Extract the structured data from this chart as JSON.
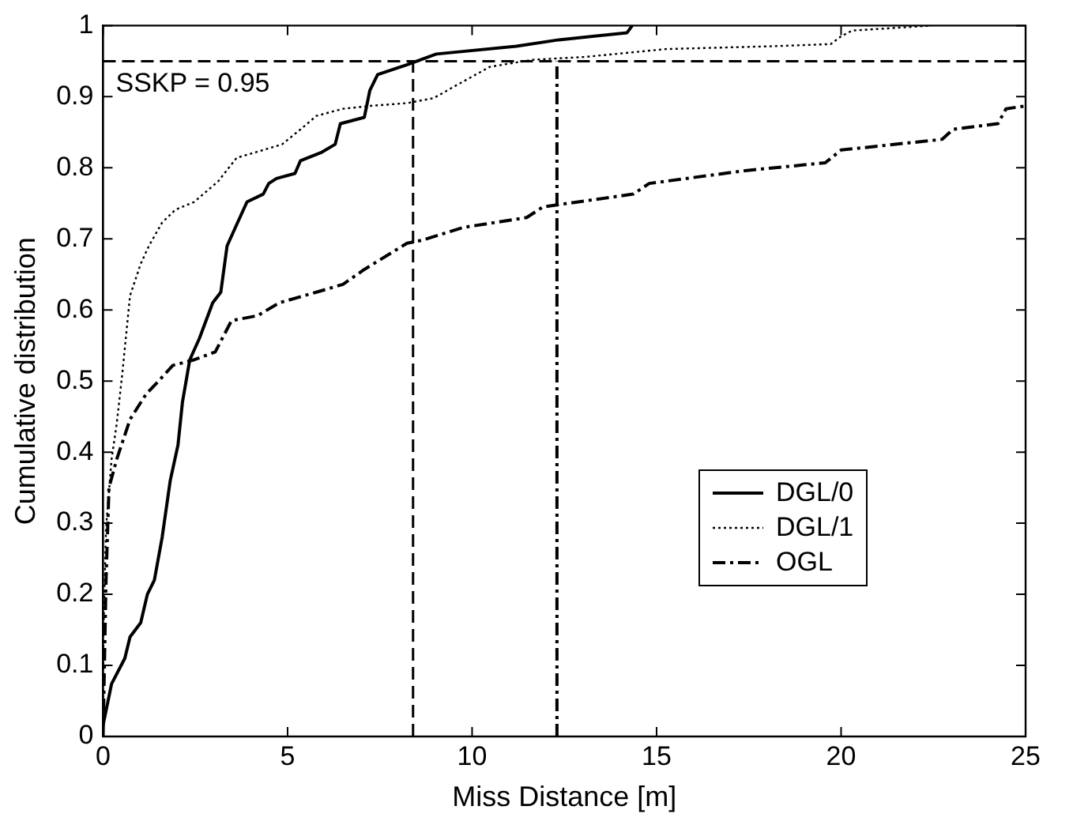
{
  "chart_data": {
    "type": "line",
    "xlabel": "Miss Distance [m]",
    "ylabel": "Cumulative distribution",
    "xlim": [
      0,
      25
    ],
    "xticks": [
      0,
      5,
      10,
      15,
      20,
      25
    ],
    "ylim": [
      0,
      1
    ],
    "yticks": [
      0,
      0.1,
      0.2,
      0.3,
      0.4,
      0.5,
      0.6,
      0.7,
      0.8,
      0.9,
      1
    ],
    "grid": false,
    "legend": "bottom right",
    "marker": "none",
    "series": [
      {
        "name": "DGL/0",
        "color": "#000000",
        "line_style": "solid",
        "x": [
          0,
          0.23,
          0.59,
          0.73,
          1.02,
          1.2,
          1.39,
          1.6,
          1.82,
          2.03,
          2.15,
          2.35,
          2.61,
          2.97,
          3.19,
          3.36,
          3.62,
          3.9,
          4.34,
          4.49,
          4.7,
          5.2,
          5.35,
          5.93,
          6.29,
          6.43,
          7.08,
          7.23,
          7.44,
          8.24,
          9.03,
          11.2,
          12.35,
          14.2,
          14.34
        ],
        "values": [
          0.016,
          0.074,
          0.11,
          0.14,
          0.16,
          0.2,
          0.22,
          0.28,
          0.36,
          0.41,
          0.47,
          0.53,
          0.56,
          0.61,
          0.625,
          0.69,
          0.72,
          0.752,
          0.763,
          0.778,
          0.785,
          0.792,
          0.81,
          0.822,
          0.833,
          0.862,
          0.871,
          0.909,
          0.931,
          0.945,
          0.96,
          0.971,
          0.98,
          0.99,
          1.0
        ]
      },
      {
        "name": "DGL/1",
        "color": "#000000",
        "line_style": "dotted",
        "x": [
          0,
          0.01,
          0.08,
          0.23,
          0.37,
          0.52,
          0.73,
          1.02,
          1.24,
          1.6,
          1.96,
          2.47,
          3.12,
          3.62,
          4.34,
          4.85,
          5.35,
          5.78,
          6.5,
          7.23,
          8.24,
          8.96,
          9.47,
          10.48,
          11.64,
          13.08,
          15.25,
          18.13,
          19.72,
          20.0,
          20.3,
          22.46
        ],
        "values": [
          0.016,
          0.147,
          0.293,
          0.39,
          0.44,
          0.51,
          0.62,
          0.665,
          0.69,
          0.723,
          0.741,
          0.752,
          0.781,
          0.814,
          0.825,
          0.833,
          0.854,
          0.873,
          0.883,
          0.887,
          0.891,
          0.898,
          0.913,
          0.942,
          0.952,
          0.956,
          0.967,
          0.971,
          0.974,
          0.985,
          0.993,
          1.0
        ]
      },
      {
        "name": "OGL",
        "color": "#000000",
        "line_style": "dashdot",
        "x": [
          0,
          0.08,
          0.16,
          0.37,
          0.73,
          1.17,
          1.45,
          1.89,
          2.47,
          3.04,
          3.48,
          4.19,
          4.77,
          5.78,
          6.5,
          7.08,
          8.24,
          8.64,
          9.75,
          11.48,
          11.92,
          14.37,
          14.8,
          17.4,
          19.57,
          20.0,
          22.74,
          23.03,
          24.25,
          24.47,
          25
        ],
        "values": [
          0.0,
          0.22,
          0.35,
          0.39,
          0.446,
          0.482,
          0.497,
          0.522,
          0.53,
          0.541,
          0.585,
          0.592,
          0.61,
          0.625,
          0.636,
          0.657,
          0.694,
          0.698,
          0.716,
          0.73,
          0.745,
          0.763,
          0.778,
          0.796,
          0.807,
          0.825,
          0.84,
          0.854,
          0.862,
          0.883,
          0.887
        ]
      }
    ],
    "ref_lines": [
      {
        "axis": "y",
        "value": 0.95,
        "label": "SSKP = 0.95",
        "line_style": "dashed"
      },
      {
        "axis": "x",
        "value": 8.4,
        "line_style": "dashed"
      },
      {
        "axis": "x",
        "value": 12.3,
        "line_style": "dashdot"
      }
    ]
  }
}
